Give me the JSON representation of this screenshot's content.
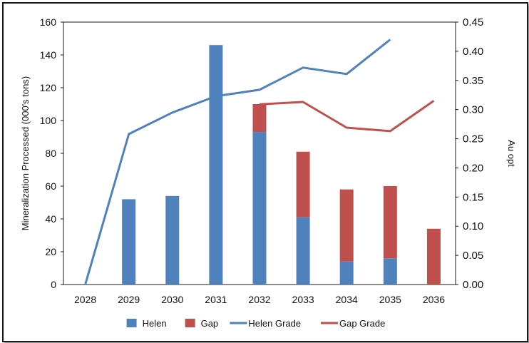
{
  "chart_data": {
    "type": "bar",
    "stacked": true,
    "categories": [
      "2028",
      "2029",
      "2030",
      "2031",
      "2032",
      "2033",
      "2034",
      "2035",
      "2036"
    ],
    "series": [
      {
        "name": "Helen",
        "kind": "bar",
        "axis": "left",
        "color": "#4f81bd",
        "values": [
          0,
          52,
          54,
          146,
          93,
          41,
          14,
          16,
          0
        ]
      },
      {
        "name": "Gap",
        "kind": "bar",
        "axis": "left",
        "color": "#c0504d",
        "values": [
          0,
          0,
          0,
          0,
          17,
          40,
          44,
          44,
          34
        ]
      },
      {
        "name": "Helen Grade",
        "kind": "line",
        "axis": "right",
        "color": "#4f81bd",
        "values": [
          0.0,
          0.258,
          0.295,
          0.323,
          0.334,
          0.372,
          0.361,
          0.42,
          null
        ]
      },
      {
        "name": "Gap Grade",
        "kind": "line",
        "axis": "right",
        "color": "#c0504d",
        "values": [
          null,
          null,
          null,
          null,
          0.309,
          0.313,
          0.269,
          0.263,
          0.315
        ]
      }
    ],
    "ylabel": "Mineralization Processed (000's tons)",
    "ylabel_right": "Au opt",
    "ylim": [
      0,
      160
    ],
    "ylim_right": [
      0,
      0.45
    ],
    "yticks": [
      "0",
      "20",
      "40",
      "60",
      "80",
      "100",
      "120",
      "140",
      "160"
    ],
    "yticks_right": [
      "0.00",
      "0.05",
      "0.10",
      "0.15",
      "0.20",
      "0.25",
      "0.30",
      "0.35",
      "0.40",
      "0.45"
    ],
    "grid": false,
    "legend_position": "bottom"
  }
}
